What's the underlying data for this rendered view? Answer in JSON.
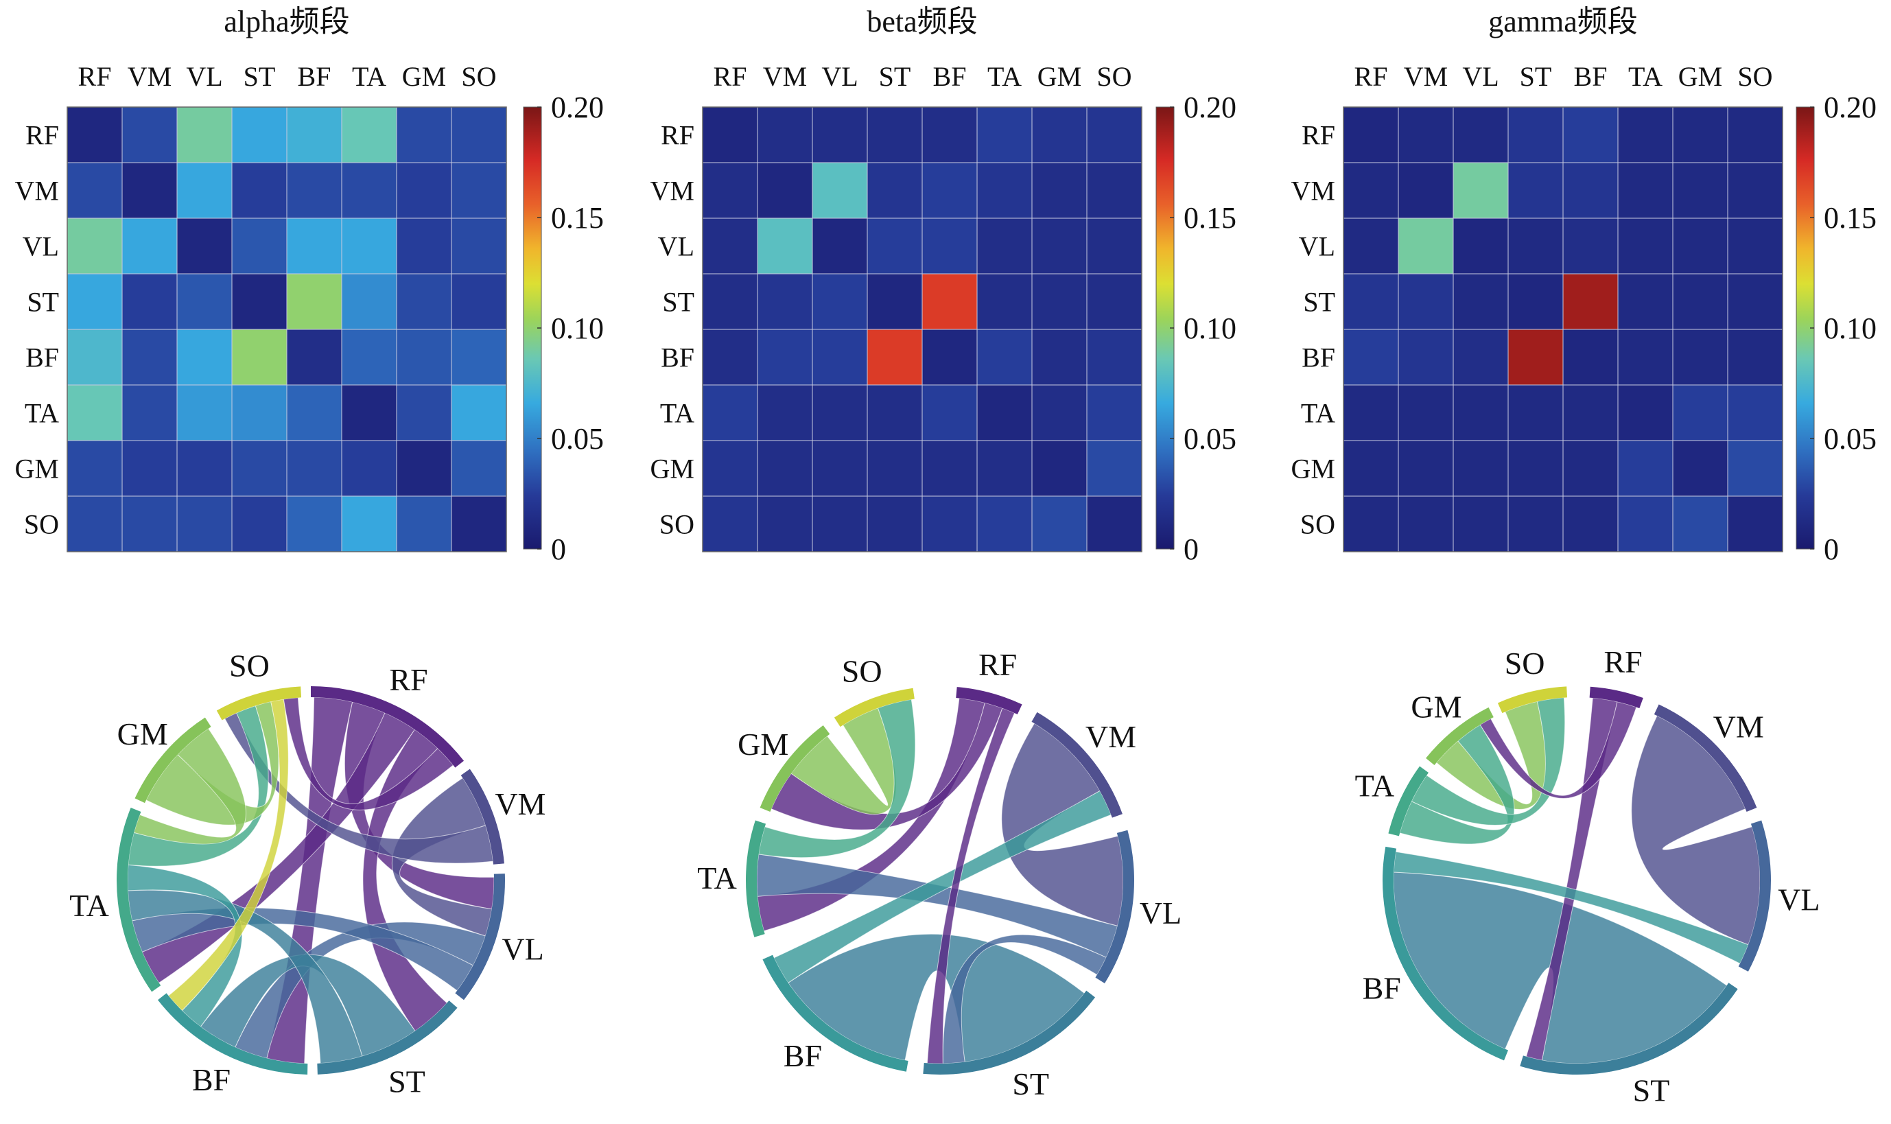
{
  "colorbar": {
    "ticks": [
      "0",
      "0.05",
      "0.10",
      "0.15",
      "0.20"
    ],
    "tick_values": [
      0,
      0.05,
      0.1,
      0.15,
      0.2
    ],
    "range": [
      0,
      0.2
    ],
    "colormap": "jet"
  },
  "chart_data": [
    {
      "type": "heatmap",
      "title": "alpha频段",
      "rows": [
        "RF",
        "VM",
        "VL",
        "ST",
        "BF",
        "TA",
        "GM",
        "SO"
      ],
      "cols": [
        "RF",
        "VM",
        "VL",
        "ST",
        "BF",
        "TA",
        "GM",
        "SO"
      ],
      "zlim": [
        0,
        0.2
      ],
      "values": [
        [
          0.01,
          0.03,
          0.09,
          0.065,
          0.07,
          0.085,
          0.03,
          0.03
        ],
        [
          0.03,
          0.01,
          0.065,
          0.025,
          0.03,
          0.03,
          0.025,
          0.03
        ],
        [
          0.09,
          0.065,
          0.01,
          0.035,
          0.065,
          0.065,
          0.025,
          0.03
        ],
        [
          0.065,
          0.025,
          0.035,
          0.01,
          0.1,
          0.055,
          0.03,
          0.025
        ],
        [
          0.075,
          0.03,
          0.065,
          0.1,
          0.015,
          0.04,
          0.035,
          0.04
        ],
        [
          0.085,
          0.03,
          0.06,
          0.055,
          0.04,
          0.01,
          0.03,
          0.065
        ],
        [
          0.03,
          0.025,
          0.025,
          0.03,
          0.03,
          0.025,
          0.01,
          0.035
        ],
        [
          0.03,
          0.03,
          0.03,
          0.025,
          0.04,
          0.065,
          0.035,
          0.01
        ]
      ]
    },
    {
      "type": "heatmap",
      "title": "beta频段",
      "rows": [
        "RF",
        "VM",
        "VL",
        "ST",
        "BF",
        "TA",
        "GM",
        "SO"
      ],
      "cols": [
        "RF",
        "VM",
        "VL",
        "ST",
        "BF",
        "TA",
        "GM",
        "SO"
      ],
      "zlim": [
        0,
        0.2
      ],
      "values": [
        [
          0.01,
          0.015,
          0.015,
          0.015,
          0.015,
          0.025,
          0.02,
          0.02
        ],
        [
          0.015,
          0.01,
          0.08,
          0.02,
          0.025,
          0.02,
          0.015,
          0.015
        ],
        [
          0.015,
          0.08,
          0.01,
          0.025,
          0.025,
          0.015,
          0.015,
          0.015
        ],
        [
          0.015,
          0.02,
          0.025,
          0.01,
          0.17,
          0.015,
          0.015,
          0.015
        ],
        [
          0.015,
          0.025,
          0.025,
          0.17,
          0.01,
          0.025,
          0.015,
          0.02
        ],
        [
          0.025,
          0.015,
          0.015,
          0.015,
          0.025,
          0.01,
          0.015,
          0.025
        ],
        [
          0.02,
          0.015,
          0.015,
          0.015,
          0.015,
          0.015,
          0.01,
          0.03
        ],
        [
          0.02,
          0.015,
          0.015,
          0.015,
          0.02,
          0.025,
          0.03,
          0.01
        ]
      ]
    },
    {
      "type": "heatmap",
      "title": "gamma频段",
      "rows": [
        "RF",
        "VM",
        "VL",
        "ST",
        "BF",
        "TA",
        "GM",
        "SO"
      ],
      "cols": [
        "RF",
        "VM",
        "VL",
        "ST",
        "BF",
        "TA",
        "GM",
        "SO"
      ],
      "zlim": [
        0,
        0.2
      ],
      "values": [
        [
          0.01,
          0.012,
          0.012,
          0.02,
          0.025,
          0.012,
          0.012,
          0.012
        ],
        [
          0.012,
          0.01,
          0.09,
          0.02,
          0.02,
          0.012,
          0.012,
          0.012
        ],
        [
          0.012,
          0.09,
          0.01,
          0.012,
          0.015,
          0.012,
          0.012,
          0.012
        ],
        [
          0.02,
          0.02,
          0.012,
          0.01,
          0.19,
          0.012,
          0.012,
          0.012
        ],
        [
          0.025,
          0.02,
          0.015,
          0.19,
          0.01,
          0.012,
          0.012,
          0.012
        ],
        [
          0.012,
          0.012,
          0.012,
          0.012,
          0.012,
          0.01,
          0.025,
          0.025
        ],
        [
          0.012,
          0.012,
          0.012,
          0.012,
          0.012,
          0.025,
          0.01,
          0.03
        ],
        [
          0.012,
          0.012,
          0.012,
          0.012,
          0.012,
          0.025,
          0.03,
          0.01
        ]
      ]
    },
    {
      "type": "chord",
      "nodes": [
        "RF",
        "VM",
        "VL",
        "ST",
        "BF",
        "TA",
        "GM",
        "SO"
      ],
      "colors": [
        "#5a2a86",
        "#50508f",
        "#46689b",
        "#3c7f9a",
        "#3a9a9a",
        "#44a98a",
        "#86c35a",
        "#cfd33a"
      ],
      "arcs_deg": [
        [
          0,
          52
        ],
        [
          55,
          85
        ],
        [
          88,
          128
        ],
        [
          131,
          178
        ],
        [
          181,
          232
        ],
        [
          235,
          292
        ],
        [
          295,
          327
        ],
        [
          331,
          357
        ]
      ],
      "links": [
        {
          "source": "RF",
          "target": "BF",
          "width": 3.4
        },
        {
          "source": "RF",
          "target": "VL",
          "width": 3.0
        },
        {
          "source": "RF",
          "target": "TA",
          "width": 3.0
        },
        {
          "source": "RF",
          "target": "ST",
          "width": 2.6
        },
        {
          "source": "VM",
          "target": "VL",
          "width": 2.6
        },
        {
          "source": "VM",
          "target": "SO",
          "width": 1.8
        },
        {
          "source": "VL",
          "target": "BF",
          "width": 3.0
        },
        {
          "source": "VL",
          "target": "TA",
          "width": 2.8
        },
        {
          "source": "ST",
          "target": "BF",
          "width": 3.6
        },
        {
          "source": "ST",
          "target": "TA",
          "width": 2.6
        },
        {
          "source": "BF",
          "target": "TA",
          "width": 2.2
        },
        {
          "source": "TA",
          "target": "SO",
          "width": 2.8
        },
        {
          "source": "GM",
          "target": "SO",
          "width": 2.2
        },
        {
          "source": "SO",
          "target": "BF",
          "width": 1.8
        },
        {
          "source": "GM",
          "target": "TA",
          "width": 1.6
        },
        {
          "source": "RF",
          "target": "SO",
          "width": 2.0
        }
      ]
    },
    {
      "type": "chord",
      "nodes": [
        "RF",
        "VM",
        "VL",
        "ST",
        "BF",
        "TA",
        "GM",
        "SO"
      ],
      "colors": [
        "#5a2a86",
        "#50508f",
        "#46689b",
        "#3c7f9a",
        "#3a9a9a",
        "#44a98a",
        "#86c35a",
        "#cfd33a"
      ],
      "arcs_deg": [
        [
          5,
          25
        ],
        [
          30,
          70
        ],
        [
          75,
          122
        ],
        [
          127,
          185
        ],
        [
          190,
          246
        ],
        [
          253,
          288
        ],
        [
          292,
          323
        ],
        [
          327,
          352
        ]
      ],
      "links": [
        {
          "source": "ST",
          "target": "BF",
          "width": 9.0
        },
        {
          "source": "VM",
          "target": "VL",
          "width": 6.5
        },
        {
          "source": "RF",
          "target": "TA",
          "width": 2.0
        },
        {
          "source": "RF",
          "target": "GM",
          "width": 1.4
        },
        {
          "source": "VL",
          "target": "TA",
          "width": 2.4
        },
        {
          "source": "BF",
          "target": "VM",
          "width": 1.8
        },
        {
          "source": "GM",
          "target": "SO",
          "width": 1.8
        },
        {
          "source": "TA",
          "target": "SO",
          "width": 1.6
        },
        {
          "source": "VL",
          "target": "ST",
          "width": 1.4
        },
        {
          "source": "RF",
          "target": "ST",
          "width": 1.0
        }
      ]
    },
    {
      "type": "chord",
      "nodes": [
        "RF",
        "VM",
        "VL",
        "ST",
        "BF",
        "TA",
        "GM",
        "SO"
      ],
      "colors": [
        "#5a2a86",
        "#50508f",
        "#46689b",
        "#3c7f9a",
        "#3a9a9a",
        "#44a98a",
        "#86c35a",
        "#cfd33a"
      ],
      "arcs_deg": [
        [
          4,
          20
        ],
        [
          25,
          68
        ],
        [
          72,
          118
        ],
        [
          124,
          197
        ],
        [
          202,
          280
        ],
        [
          284,
          306
        ],
        [
          309,
          333
        ],
        [
          336,
          357
        ]
      ],
      "links": [
        {
          "source": "ST",
          "target": "BF",
          "width": 13.0
        },
        {
          "source": "VM",
          "target": "VL",
          "width": 7.0
        },
        {
          "source": "GM",
          "target": "SO",
          "width": 2.0
        },
        {
          "source": "TA",
          "target": "GM",
          "width": 1.8
        },
        {
          "source": "TA",
          "target": "SO",
          "width": 1.6
        },
        {
          "source": "RF",
          "target": "ST",
          "width": 1.0
        },
        {
          "source": "BF",
          "target": "VL",
          "width": 1.2
        },
        {
          "source": "RF",
          "target": "GM",
          "width": 0.8
        }
      ]
    }
  ]
}
